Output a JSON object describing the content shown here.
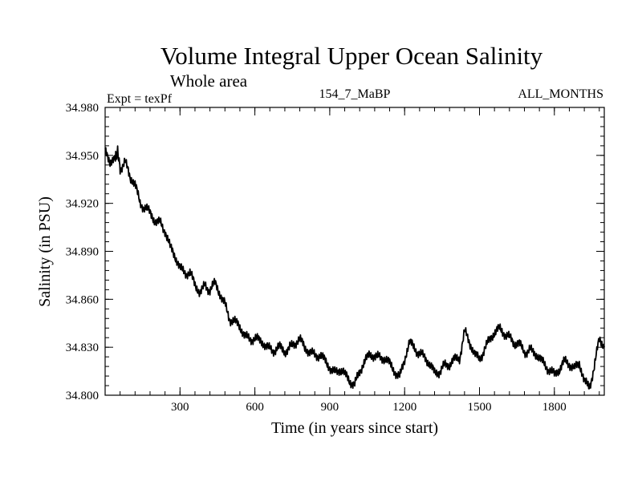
{
  "chart_data": {
    "type": "line",
    "title": "Volume Integral Upper Ocean Salinity",
    "subtitle": "Whole area",
    "experiment_label": "Expt = texPf",
    "run_label": "154_7_MaBP",
    "months_label": "ALL_MONTHS",
    "xlabel": "Time (in years since start)",
    "ylabel": "Salinity (in PSU)",
    "xlim": [
      0,
      2000
    ],
    "ylim": [
      34.8,
      34.98
    ],
    "x_ticks": [
      300,
      600,
      900,
      1200,
      1500,
      1800
    ],
    "x_tick_labels": [
      "300",
      "600",
      "900",
      "1200",
      "1500",
      "1800"
    ],
    "y_ticks": [
      34.8,
      34.83,
      34.86,
      34.89,
      34.92,
      34.95,
      34.98
    ],
    "y_tick_labels": [
      "34.800",
      "34.830",
      "34.860",
      "34.890",
      "34.920",
      "34.950",
      "34.980"
    ],
    "grid": false,
    "series": [
      {
        "name": "Salinity",
        "color": "#000000",
        "x": [
          0,
          20,
          40,
          50,
          60,
          80,
          100,
          120,
          140,
          160,
          180,
          200,
          220,
          240,
          260,
          280,
          300,
          320,
          340,
          360,
          380,
          400,
          420,
          440,
          460,
          480,
          500,
          520,
          540,
          560,
          580,
          600,
          620,
          640,
          660,
          680,
          700,
          720,
          740,
          760,
          780,
          800,
          820,
          840,
          860,
          880,
          900,
          920,
          940,
          960,
          980,
          1000,
          1020,
          1040,
          1060,
          1080,
          1100,
          1120,
          1140,
          1160,
          1180,
          1200,
          1220,
          1240,
          1260,
          1280,
          1300,
          1320,
          1340,
          1360,
          1380,
          1400,
          1420,
          1440,
          1460,
          1480,
          1500,
          1520,
          1540,
          1560,
          1580,
          1600,
          1620,
          1640,
          1660,
          1680,
          1700,
          1720,
          1740,
          1760,
          1780,
          1800,
          1820,
          1840,
          1860,
          1880,
          1900,
          1920,
          1940,
          1960,
          1980,
          2000
        ],
        "values": [
          34.952,
          34.945,
          34.948,
          34.954,
          34.943,
          34.946,
          34.935,
          34.932,
          34.921,
          34.918,
          34.913,
          34.908,
          34.909,
          34.904,
          34.892,
          34.886,
          34.88,
          34.878,
          34.876,
          34.868,
          34.864,
          34.87,
          34.866,
          34.869,
          34.863,
          34.858,
          34.848,
          34.845,
          34.842,
          34.838,
          34.836,
          34.835,
          34.833,
          34.832,
          34.83,
          34.828,
          34.829,
          34.827,
          34.831,
          34.833,
          34.834,
          34.829,
          34.828,
          34.826,
          34.824,
          34.821,
          34.818,
          34.815,
          34.816,
          34.812,
          34.809,
          34.808,
          34.815,
          34.82,
          34.825,
          34.826,
          34.824,
          34.822,
          34.819,
          34.816,
          34.812,
          34.822,
          34.832,
          34.83,
          34.827,
          34.824,
          34.818,
          34.814,
          34.816,
          34.819,
          34.818,
          34.822,
          34.824,
          34.841,
          34.832,
          34.825,
          34.823,
          34.83,
          34.834,
          34.838,
          34.842,
          34.84,
          34.836,
          34.831,
          34.832,
          34.828,
          34.829,
          34.825,
          34.823,
          34.82,
          34.817,
          34.812,
          34.815,
          34.822,
          34.821,
          34.816,
          34.819,
          34.809,
          34.806,
          34.818,
          34.834,
          34.83
        ]
      }
    ]
  }
}
